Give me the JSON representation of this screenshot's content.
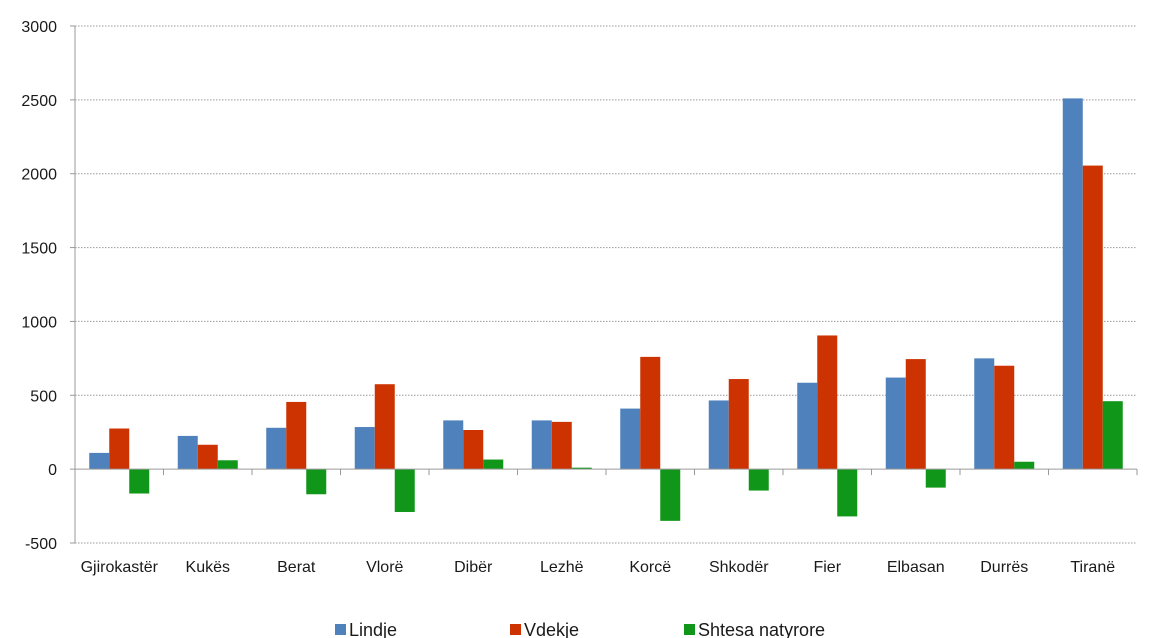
{
  "chart_data": {
    "type": "bar",
    "categories": [
      "Gjirokastër",
      "Kukës",
      "Berat",
      "Vlorë",
      "Dibër",
      "Lezhë",
      "Korcë",
      "Shkodër",
      "Fier",
      "Elbasan",
      "Durrës",
      "Tiranë"
    ],
    "series": [
      {
        "name": "Lindje",
        "color": "#4f81bd",
        "values": [
          110,
          225,
          280,
          285,
          330,
          330,
          410,
          465,
          585,
          620,
          750,
          2510
        ]
      },
      {
        "name": "Vdekje",
        "color": "#cc3300",
        "values": [
          275,
          165,
          455,
          575,
          265,
          320,
          760,
          610,
          905,
          745,
          700,
          2055
        ]
      },
      {
        "name": "Shtesa natyrore",
        "color": "#109618",
        "values": [
          -165,
          60,
          -170,
          -290,
          65,
          10,
          -350,
          -145,
          -320,
          -125,
          50,
          460
        ]
      }
    ],
    "yticks": [
      -500,
      0,
      500,
      1000,
      1500,
      2000,
      2500,
      3000
    ],
    "ylim": [
      -500,
      3000
    ],
    "grid": true,
    "legend_position": "bottom"
  }
}
